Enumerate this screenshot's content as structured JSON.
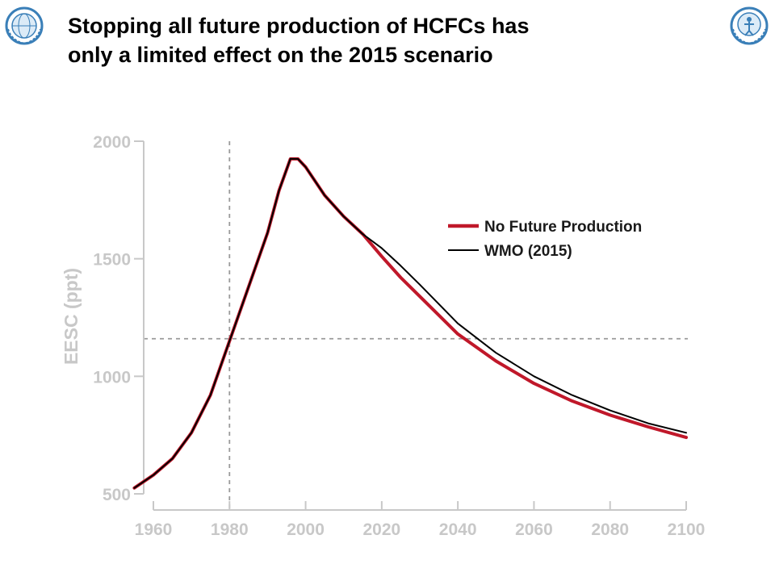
{
  "page": {
    "title_line1": "Stopping all future production of HCFCs has",
    "title_line2": "only a limited effect on the 2015 scenario",
    "logos": {
      "left": "wmo-globe-logo",
      "right": "unep-logo",
      "color": "#3a7fb8"
    }
  },
  "chart_data": {
    "type": "line",
    "title": "",
    "xlabel": "",
    "ylabel": "EESC (ppt)",
    "xlim": [
      1955,
      2100
    ],
    "ylim": [
      470,
      2000
    ],
    "xticks": [
      1960,
      1980,
      2000,
      2020,
      2040,
      2060,
      2080,
      2100
    ],
    "yticks": [
      500,
      1000,
      1500,
      2000
    ],
    "grid": false,
    "reference_lines": {
      "x": 1980,
      "y": 1160
    },
    "legend_position": "top-right",
    "x": [
      1955,
      1960,
      1965,
      1970,
      1975,
      1980,
      1985,
      1990,
      1993,
      1996,
      1998,
      2000,
      2005,
      2010,
      2015,
      2020,
      2025,
      2030,
      2040,
      2050,
      2060,
      2070,
      2080,
      2090,
      2100
    ],
    "series": [
      {
        "name": "No Future Production",
        "color": "#c0182a",
        "values": [
          525,
          580,
          650,
          760,
          920,
          1150,
          1380,
          1610,
          1790,
          1925,
          1925,
          1890,
          1770,
          1680,
          1605,
          1510,
          1420,
          1340,
          1180,
          1065,
          970,
          895,
          835,
          785,
          740
        ]
      },
      {
        "name": "WMO (2015)",
        "color": "#000000",
        "values": [
          525,
          580,
          650,
          760,
          920,
          1150,
          1380,
          1610,
          1790,
          1925,
          1925,
          1890,
          1770,
          1680,
          1605,
          1545,
          1470,
          1390,
          1225,
          1100,
          1000,
          920,
          855,
          800,
          760
        ]
      }
    ]
  }
}
